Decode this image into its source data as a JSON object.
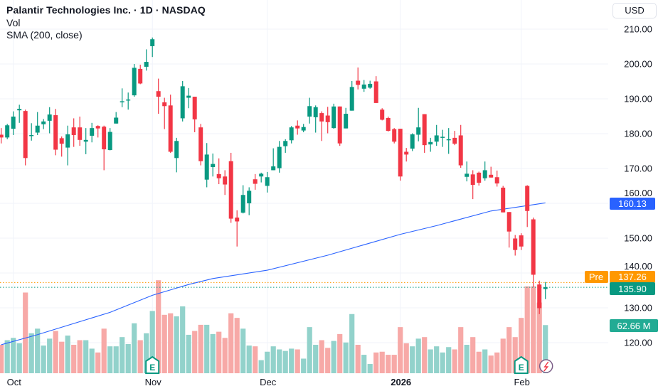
{
  "legend": {
    "title": "Palantir Technologies Inc. · 1D · NASDAQ",
    "volume": "Vol",
    "sma": "SMA (200, close)"
  },
  "currency": "USD",
  "colors": {
    "up": "#089981",
    "down": "#f23645",
    "vol_up": "#92d2cb",
    "vol_down": "#f7a9a7",
    "sma": "#2962ff",
    "premarket": "#ff9800",
    "grid": "#f0f3fa"
  },
  "badges": {
    "sma": {
      "value": "160.13",
      "color": "#2962ff"
    },
    "pre": {
      "label": "Pre",
      "value": "137.26",
      "color": "#ff9800"
    },
    "last": {
      "value": "135.90",
      "color": "#089981"
    },
    "volume": {
      "value": "62.66 M",
      "color": "#22ab94"
    }
  },
  "chart_data": {
    "type": "candlestick",
    "y_ticks": [
      "210.00",
      "200.00",
      "190.00",
      "180.00",
      "170.00",
      "160.00",
      "150.00",
      "140.00",
      "130.00",
      "120.00"
    ],
    "x_ticks": [
      {
        "label": "Oct",
        "index": 2,
        "bold": false
      },
      {
        "label": "Nov",
        "index": 25,
        "bold": false
      },
      {
        "label": "Dec",
        "index": 44,
        "bold": false
      },
      {
        "label": "2026",
        "index": 66,
        "bold": true
      },
      {
        "label": "Feb",
        "index": 86,
        "bold": false
      }
    ],
    "ohlc": [
      [
        179.7,
        181.6,
        177.2,
        178.9
      ],
      [
        178.9,
        182.8,
        178.4,
        182.4
      ],
      [
        181.4,
        186.4,
        179.6,
        184.9
      ],
      [
        186.7,
        188.3,
        183.1,
        187.1
      ],
      [
        186.5,
        186.9,
        170.9,
        173.0
      ],
      [
        179.3,
        183.0,
        178.0,
        179.6
      ],
      [
        180.3,
        186.2,
        179.6,
        182.3
      ],
      [
        182.7,
        184.2,
        181.3,
        183.5
      ],
      [
        183.7,
        187.6,
        180.1,
        185.5
      ],
      [
        185.3,
        187.1,
        173.8,
        175.4
      ],
      [
        178.7,
        179.2,
        173.4,
        177.1
      ],
      [
        176.0,
        182.3,
        170.9,
        179.8
      ],
      [
        181.8,
        184.4,
        176.2,
        179.6
      ],
      [
        181.8,
        184.9,
        176.5,
        178.2
      ],
      [
        177.7,
        181.6,
        174.1,
        178.2
      ],
      [
        179.4,
        183.1,
        177.5,
        181.6
      ],
      [
        182.2,
        182.4,
        178.9,
        181.5
      ],
      [
        182.0,
        182.3,
        169.5,
        175.5
      ],
      [
        175.3,
        181.6,
        175.2,
        180.5
      ],
      [
        182.9,
        186.2,
        182.9,
        184.6
      ],
      [
        189.0,
        193.0,
        187.6,
        189.3
      ],
      [
        189.5,
        191.8,
        186.9,
        189.8
      ],
      [
        191.0,
        200.0,
        190.6,
        198.9
      ],
      [
        198.6,
        199.8,
        194.2,
        194.4
      ],
      [
        199.2,
        204.2,
        198.1,
        200.6
      ],
      [
        205.1,
        207.6,
        202.0,
        207.1
      ],
      [
        192.2,
        195.8,
        185.7,
        190.6
      ],
      [
        189.0,
        190.3,
        181.3,
        187.9
      ],
      [
        188.1,
        191.2,
        174.5,
        174.8
      ],
      [
        173.0,
        178.8,
        168.9,
        177.9
      ],
      [
        184.4,
        195.1,
        183.5,
        193.6
      ],
      [
        190.3,
        193.1,
        187.3,
        190.9
      ],
      [
        190.6,
        190.6,
        180.4,
        184.1
      ],
      [
        181.8,
        182.8,
        170.9,
        172.1
      ],
      [
        166.8,
        177.3,
        164.6,
        174.0
      ],
      [
        170.4,
        174.3,
        167.7,
        171.3
      ],
      [
        168.4,
        172.9,
        165.5,
        167.2
      ],
      [
        167.7,
        169.5,
        162.4,
        165.4
      ],
      [
        172.1,
        174.5,
        154.4,
        155.6
      ],
      [
        155.9,
        158.0,
        147.6,
        154.8
      ],
      [
        157.3,
        165.2,
        157.1,
        162.4
      ],
      [
        160.0,
        164.6,
        156.6,
        163.6
      ],
      [
        166.9,
        168.4,
        163.9,
        165.6
      ],
      [
        167.7,
        168.8,
        166.0,
        168.5
      ],
      [
        165.0,
        169.0,
        163.1,
        167.5
      ],
      [
        169.5,
        175.8,
        169.5,
        170.6
      ],
      [
        170.1,
        177.9,
        168.8,
        176.2
      ],
      [
        176.4,
        178.4,
        174.5,
        177.9
      ],
      [
        178.1,
        182.2,
        177.2,
        181.8
      ],
      [
        182.3,
        183.8,
        179.7,
        181.5
      ],
      [
        180.9,
        182.8,
        180.4,
        181.9
      ],
      [
        184.9,
        190.3,
        182.9,
        187.9
      ],
      [
        184.7,
        188.1,
        180.3,
        187.6
      ],
      [
        185.9,
        186.4,
        177.9,
        183.5
      ],
      [
        185.2,
        187.7,
        180.1,
        183.3
      ],
      [
        181.6,
        188.6,
        181.4,
        187.8
      ],
      [
        187.8,
        187.8,
        176.5,
        177.2
      ],
      [
        181.5,
        187.4,
        181.5,
        185.7
      ],
      [
        186.6,
        195.1,
        186.6,
        193.4
      ],
      [
        195.2,
        199.0,
        192.7,
        194.0
      ],
      [
        192.9,
        195.4,
        192.0,
        194.1
      ],
      [
        193.2,
        195.2,
        192.9,
        194.3
      ],
      [
        195.0,
        196.5,
        188.8,
        188.8
      ],
      [
        186.9,
        187.3,
        183.8,
        184.0
      ],
      [
        184.5,
        184.9,
        180.6,
        180.8
      ],
      [
        181.3,
        181.6,
        177.2,
        177.7
      ],
      [
        181.4,
        181.4,
        166.5,
        167.7
      ],
      [
        174.8,
        175.9,
        172.0,
        174.0
      ],
      [
        175.7,
        180.1,
        175.0,
        179.8
      ],
      [
        179.7,
        187.4,
        177.8,
        181.8
      ],
      [
        185.6,
        185.6,
        174.5,
        176.7
      ],
      [
        176.9,
        178.8,
        174.8,
        177.6
      ],
      [
        177.7,
        182.5,
        176.5,
        179.5
      ],
      [
        178.9,
        181.1,
        176.2,
        179.1
      ],
      [
        178.2,
        181.6,
        174.2,
        178.4
      ],
      [
        178.8,
        180.8,
        176.7,
        177.1
      ],
      [
        179.5,
        182.5,
        170.2,
        170.9
      ],
      [
        167.6,
        172.0,
        166.3,
        168.5
      ],
      [
        168.3,
        169.5,
        161.2,
        165.3
      ],
      [
        168.8,
        169.1,
        165.1,
        165.9
      ],
      [
        167.2,
        172.0,
        166.5,
        169.5
      ],
      [
        168.2,
        170.5,
        167.4,
        167.4
      ],
      [
        167.5,
        169.4,
        164.8,
        165.7
      ],
      [
        164.5,
        165.0,
        157.4,
        157.4
      ],
      [
        157.5,
        157.5,
        147.3,
        151.9
      ],
      [
        149.9,
        150.9,
        145.0,
        146.6
      ],
      [
        150.8,
        151.4,
        146.6,
        147.6
      ],
      [
        165.0,
        165.2,
        153.2,
        157.8
      ],
      [
        155.4,
        155.9,
        136.0,
        139.5
      ],
      [
        136.7,
        137.8,
        128.2,
        129.9
      ],
      [
        135.4,
        137.4,
        132.5,
        135.9
      ]
    ],
    "volume_millions": [
      37,
      43,
      46,
      39,
      105,
      52,
      58,
      36,
      45,
      55,
      41,
      49,
      37,
      43,
      43,
      32,
      27,
      58,
      35,
      35,
      47,
      38,
      65,
      43,
      52,
      81,
      121,
      76,
      78,
      74,
      87,
      50,
      55,
      63,
      63,
      51,
      54,
      46,
      78,
      72,
      58,
      36,
      35,
      17,
      28,
      35,
      31,
      29,
      32,
      31,
      19,
      60,
      37,
      43,
      33,
      42,
      51,
      40,
      77,
      37,
      24,
      12,
      27,
      28,
      24,
      24,
      60,
      39,
      35,
      45,
      47,
      31,
      35,
      27,
      34,
      31,
      60,
      37,
      47,
      28,
      31,
      23,
      27,
      45,
      60,
      47,
      72,
      113,
      113,
      92,
      62.66
    ],
    "sma_200": [
      [
        0,
        119.4
      ],
      [
        6,
        122.3
      ],
      [
        18,
        128.7
      ],
      [
        25,
        133.6
      ],
      [
        31,
        136.7
      ],
      [
        35,
        138.4
      ],
      [
        44,
        140.8
      ],
      [
        54,
        145.1
      ],
      [
        66,
        151.1
      ],
      [
        72,
        153.6
      ],
      [
        81,
        157.8
      ],
      [
        90,
        160.13
      ]
    ],
    "price_lines": {
      "pre": 137.26,
      "last": 135.9,
      "sma_last": 160.13
    },
    "events": [
      {
        "type": "earnings",
        "label": "E",
        "index": 25
      },
      {
        "type": "earnings",
        "label": "E",
        "index": 86
      },
      {
        "type": "dividend-split-flash",
        "index": 90
      }
    ]
  }
}
